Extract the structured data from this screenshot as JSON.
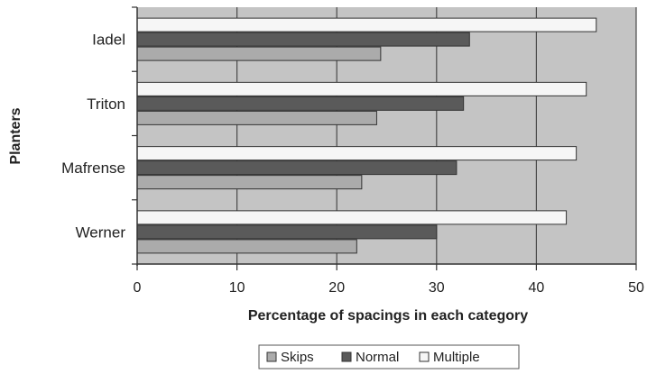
{
  "chart_data": {
    "type": "bar",
    "orientation": "horizontal",
    "categories": [
      "Iadel",
      "Triton",
      "Mafrense",
      "Werner"
    ],
    "series": [
      {
        "name": "Multiple",
        "values": [
          46,
          45,
          44,
          43
        ],
        "color": "#f6f6f6"
      },
      {
        "name": "Normal",
        "values": [
          33.3,
          32.7,
          32,
          30
        ],
        "color": "#5a5a5a"
      },
      {
        "name": "Skips",
        "values": [
          24.4,
          24,
          22.5,
          22
        ],
        "color": "#ababab"
      }
    ],
    "xlabel": "Percentage of spacings in each category",
    "ylabel": "Planters",
    "xlim": [
      0,
      50
    ],
    "xticks": [
      "0",
      "10",
      "20",
      "30",
      "40",
      "50"
    ],
    "grid": "vertical",
    "legend_position": "bottom",
    "legend": [
      {
        "name": "Skips",
        "color": "#ababab"
      },
      {
        "name": "Normal",
        "color": "#5a5a5a"
      },
      {
        "name": "Multiple",
        "color": "#f6f6f6"
      }
    ],
    "plot_background": "#c4c4c4"
  }
}
